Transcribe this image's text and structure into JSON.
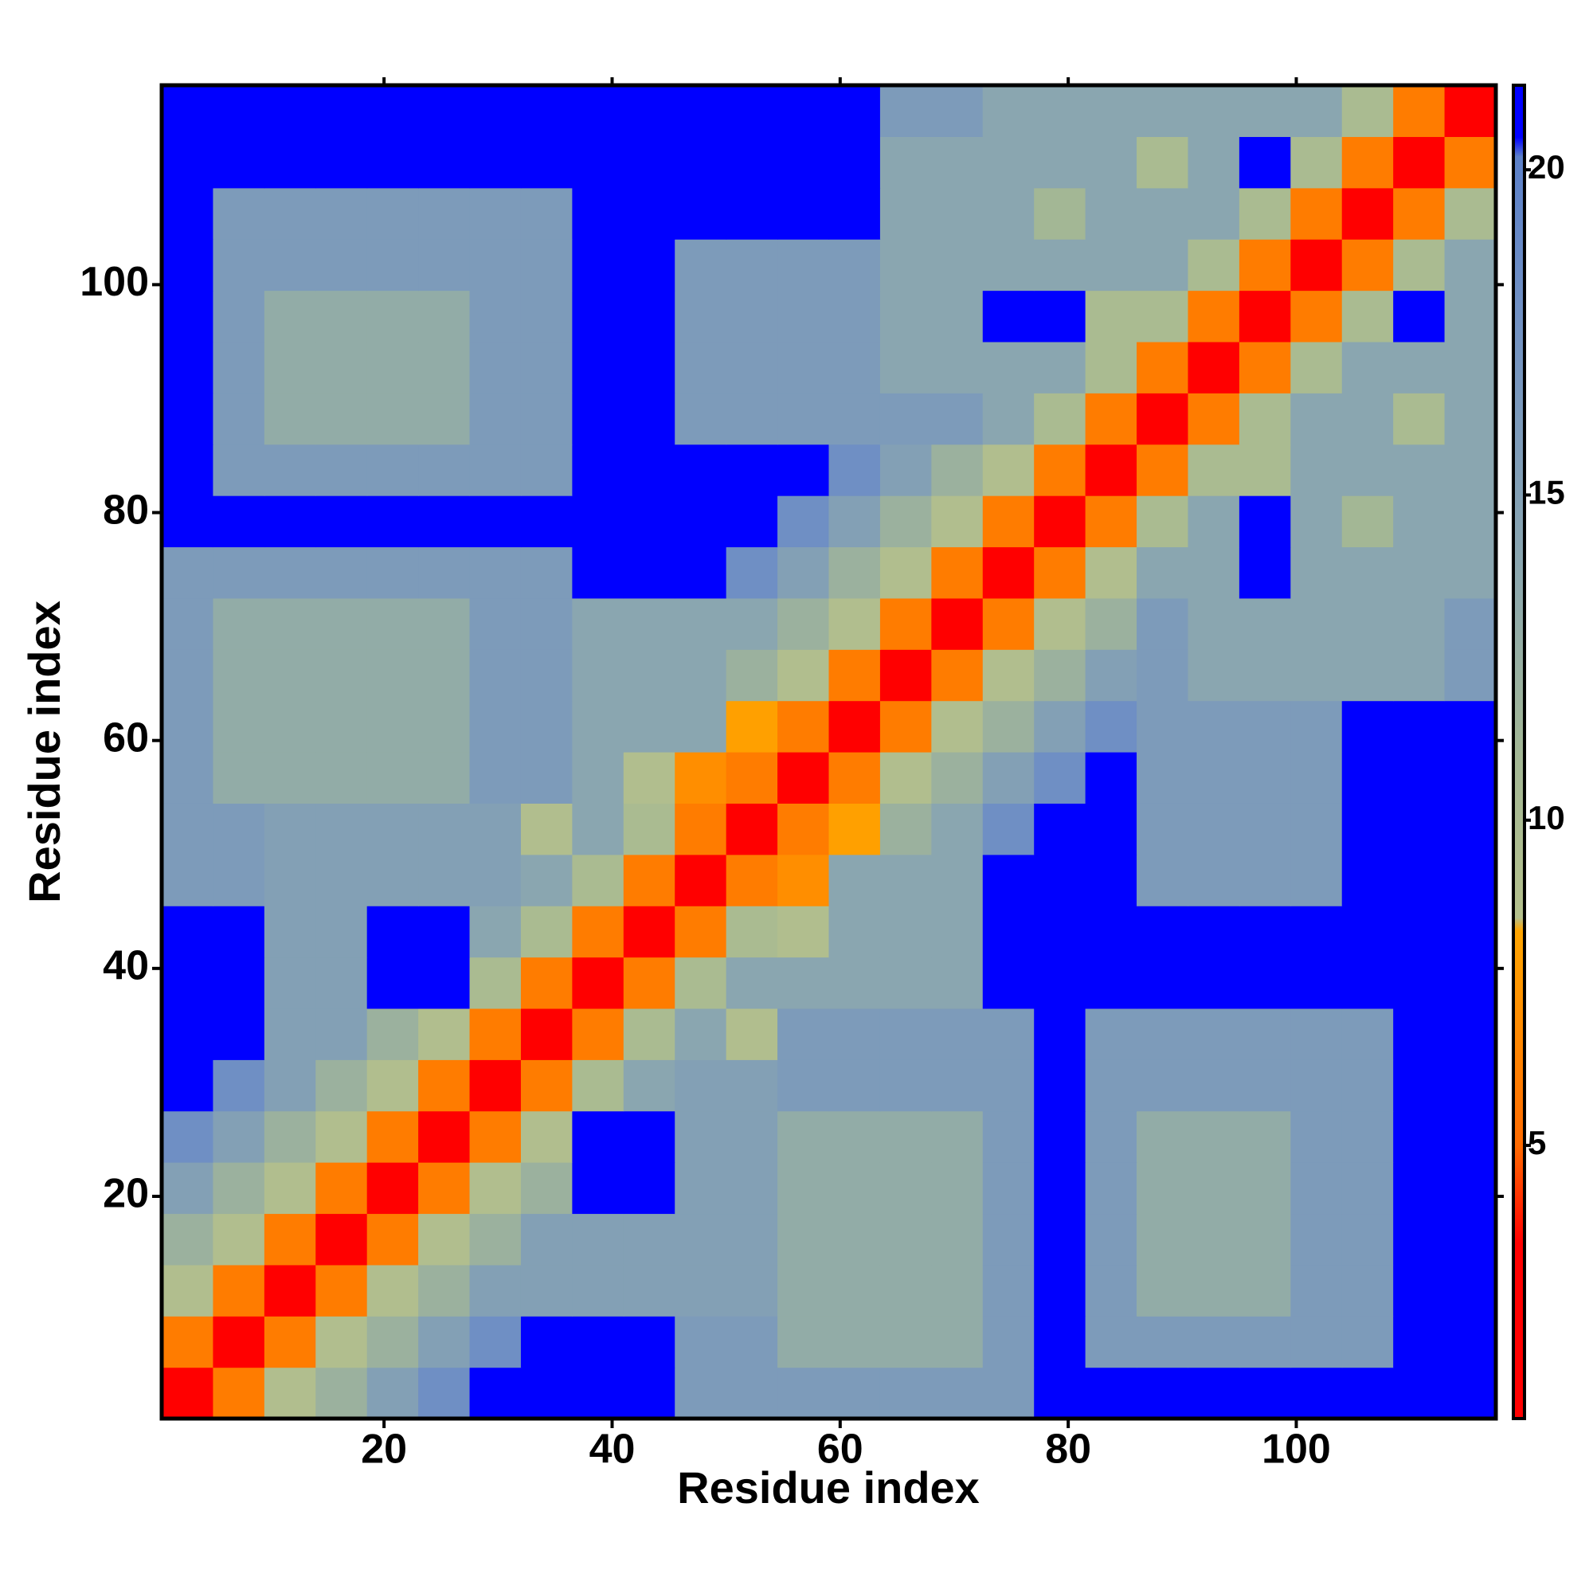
{
  "chart_data": {
    "type": "heatmap",
    "xlabel": "Residue index",
    "ylabel": "Residue index",
    "x": [
      2.75,
      7.25,
      11.75,
      16.25,
      20.75,
      25.25,
      29.75,
      34.25,
      38.75,
      43.25,
      47.75,
      52.25,
      56.75,
      61.25,
      65.75,
      70.25,
      74.75,
      79.25,
      83.75,
      88.25,
      92.75,
      97.25,
      101.75,
      106.25,
      110.75,
      115.25
    ],
    "y": [
      2.75,
      7.25,
      11.75,
      16.25,
      20.75,
      25.25,
      29.75,
      34.25,
      38.75,
      43.25,
      47.75,
      52.25,
      56.75,
      61.25,
      65.75,
      70.25,
      74.75,
      79.25,
      83.75,
      88.25,
      92.75,
      97.25,
      101.75,
      106.25,
      110.75,
      115.25
    ],
    "z": [
      [
        2,
        6,
        9,
        12,
        15,
        18,
        21,
        21,
        21,
        21,
        16,
        16,
        16,
        16,
        16,
        16,
        16,
        21,
        21,
        21,
        21,
        21,
        21,
        21,
        21,
        21
      ],
      [
        6,
        2,
        6,
        9,
        12,
        15,
        18,
        21,
        21,
        21,
        16,
        16,
        13,
        13,
        13,
        13,
        16,
        21,
        16,
        16,
        16,
        16,
        16,
        16,
        21,
        21
      ],
      [
        9,
        6,
        2,
        6,
        9,
        12,
        15,
        15,
        15,
        15,
        15,
        15,
        13,
        13,
        13,
        13,
        16,
        21,
        16,
        13,
        13,
        13,
        16,
        16,
        21,
        21
      ],
      [
        12,
        9,
        6,
        2,
        6,
        9,
        12,
        15,
        15,
        15,
        15,
        15,
        13,
        13,
        13,
        13,
        16,
        21,
        16,
        13,
        13,
        13,
        16,
        16,
        21,
        21
      ],
      [
        15,
        12,
        9,
        6,
        2,
        6,
        9,
        12,
        21,
        21,
        15,
        15,
        13,
        13,
        13,
        13,
        16,
        21,
        16,
        13,
        13,
        13,
        16,
        16,
        21,
        21
      ],
      [
        18,
        15,
        12,
        9,
        6,
        2,
        6,
        9,
        21,
        21,
        15,
        15,
        13,
        13,
        13,
        13,
        16,
        21,
        16,
        13,
        13,
        13,
        16,
        16,
        21,
        21
      ],
      [
        21,
        18,
        15,
        12,
        9,
        6,
        2,
        6,
        10,
        14,
        15,
        15,
        16,
        16,
        16,
        16,
        16,
        21,
        16,
        16,
        16,
        16,
        16,
        16,
        21,
        21
      ],
      [
        21,
        21,
        15,
        15,
        12,
        9,
        6,
        2,
        6,
        10,
        14,
        9,
        16,
        16,
        16,
        16,
        16,
        21,
        16,
        16,
        16,
        16,
        16,
        16,
        21,
        21
      ],
      [
        21,
        21,
        15,
        15,
        21,
        21,
        10,
        6,
        2,
        6,
        10,
        14,
        14,
        14,
        14,
        14,
        21,
        21,
        21,
        21,
        21,
        21,
        21,
        21,
        21,
        21
      ],
      [
        21,
        21,
        15,
        15,
        21,
        21,
        14,
        10,
        6,
        2,
        6,
        10,
        9,
        14,
        14,
        14,
        21,
        21,
        21,
        21,
        21,
        21,
        21,
        21,
        21,
        21
      ],
      [
        16,
        16,
        15,
        15,
        15,
        15,
        15,
        14,
        10,
        6,
        2,
        6,
        7,
        14,
        14,
        14,
        21,
        21,
        21,
        16,
        16,
        16,
        16,
        21,
        21,
        21
      ],
      [
        16,
        16,
        15,
        15,
        15,
        15,
        15,
        9,
        14,
        10,
        6,
        2,
        6,
        8,
        12,
        14,
        18,
        21,
        21,
        16,
        16,
        16,
        16,
        21,
        21,
        21
      ],
      [
        16,
        13,
        13,
        13,
        13,
        13,
        16,
        16,
        14,
        9,
        7,
        6,
        2,
        6,
        9,
        12,
        15,
        18,
        21,
        16,
        16,
        16,
        16,
        21,
        21,
        21
      ],
      [
        16,
        13,
        13,
        13,
        13,
        13,
        16,
        16,
        14,
        14,
        14,
        8,
        6,
        2,
        6,
        9,
        12,
        15,
        18,
        16,
        16,
        16,
        16,
        21,
        21,
        21
      ],
      [
        16,
        13,
        13,
        13,
        13,
        13,
        16,
        16,
        14,
        14,
        14,
        12,
        9,
        6,
        2,
        6,
        9,
        12,
        15,
        16,
        14,
        14,
        14,
        14,
        14,
        16
      ],
      [
        16,
        13,
        13,
        13,
        13,
        13,
        16,
        16,
        14,
        14,
        14,
        14,
        12,
        9,
        6,
        2,
        6,
        9,
        12,
        16,
        14,
        14,
        14,
        14,
        14,
        16
      ],
      [
        16,
        16,
        16,
        16,
        16,
        16,
        16,
        16,
        21,
        21,
        21,
        18,
        15,
        12,
        9,
        6,
        2,
        6,
        9,
        14,
        14,
        21,
        14,
        14,
        14,
        14
      ],
      [
        21,
        21,
        21,
        21,
        21,
        21,
        21,
        21,
        21,
        21,
        21,
        21,
        18,
        15,
        12,
        9,
        6,
        2,
        6,
        10,
        14,
        21,
        14,
        11,
        14,
        14
      ],
      [
        21,
        16,
        16,
        16,
        16,
        16,
        16,
        16,
        21,
        21,
        21,
        21,
        21,
        18,
        15,
        12,
        9,
        6,
        2,
        6,
        10,
        10,
        14,
        14,
        14,
        14
      ],
      [
        21,
        16,
        13,
        13,
        13,
        13,
        16,
        16,
        21,
        21,
        16,
        16,
        16,
        16,
        16,
        16,
        14,
        10,
        6,
        2,
        6,
        10,
        14,
        14,
        10,
        14
      ],
      [
        21,
        16,
        13,
        13,
        13,
        13,
        16,
        16,
        21,
        21,
        16,
        16,
        16,
        16,
        14,
        14,
        14,
        14,
        10,
        6,
        2,
        6,
        10,
        14,
        14,
        14
      ],
      [
        21,
        16,
        13,
        13,
        13,
        13,
        16,
        16,
        21,
        21,
        16,
        16,
        16,
        16,
        14,
        14,
        21,
        21,
        10,
        10,
        6,
        2,
        6,
        10,
        21,
        14
      ],
      [
        21,
        16,
        16,
        16,
        16,
        16,
        16,
        16,
        21,
        21,
        16,
        16,
        16,
        16,
        14,
        14,
        14,
        14,
        14,
        14,
        10,
        6,
        2,
        6,
        10,
        14
      ],
      [
        21,
        16,
        16,
        16,
        16,
        16,
        16,
        16,
        21,
        21,
        21,
        21,
        21,
        21,
        14,
        14,
        14,
        11,
        14,
        14,
        14,
        10,
        6,
        2,
        6,
        10
      ],
      [
        21,
        21,
        21,
        21,
        21,
        21,
        21,
        21,
        21,
        21,
        21,
        21,
        21,
        21,
        14,
        14,
        14,
        14,
        14,
        10,
        14,
        21,
        10,
        6,
        2,
        6
      ],
      [
        21,
        21,
        21,
        21,
        21,
        21,
        21,
        21,
        21,
        21,
        21,
        21,
        21,
        21,
        16,
        16,
        14,
        14,
        14,
        14,
        14,
        14,
        14,
        10,
        6,
        2
      ]
    ],
    "xlim": [
      0.5,
      117.5
    ],
    "ylim": [
      0.5,
      117.5
    ],
    "xticks": [
      20,
      40,
      60,
      80,
      100
    ],
    "yticks": [
      20,
      40,
      60,
      80,
      100
    ],
    "colorbar": {
      "lim": [
        0.8,
        21.3
      ],
      "ticks": [
        5,
        10,
        15,
        20
      ],
      "colorscale": [
        [
          0.8,
          "#ff0000"
        ],
        [
          3.5,
          "#ff0000"
        ],
        [
          5,
          "#ff6a00"
        ],
        [
          8.3,
          "#ffa500"
        ],
        [
          8.5,
          "#b4c08c"
        ],
        [
          11,
          "#a3b795"
        ],
        [
          14,
          "#8aa6b0"
        ],
        [
          18,
          "#6f8fc4"
        ],
        [
          20.2,
          "#5c80c8"
        ],
        [
          20.5,
          "#0000ff"
        ],
        [
          21.3,
          "#0000ff"
        ]
      ]
    }
  }
}
